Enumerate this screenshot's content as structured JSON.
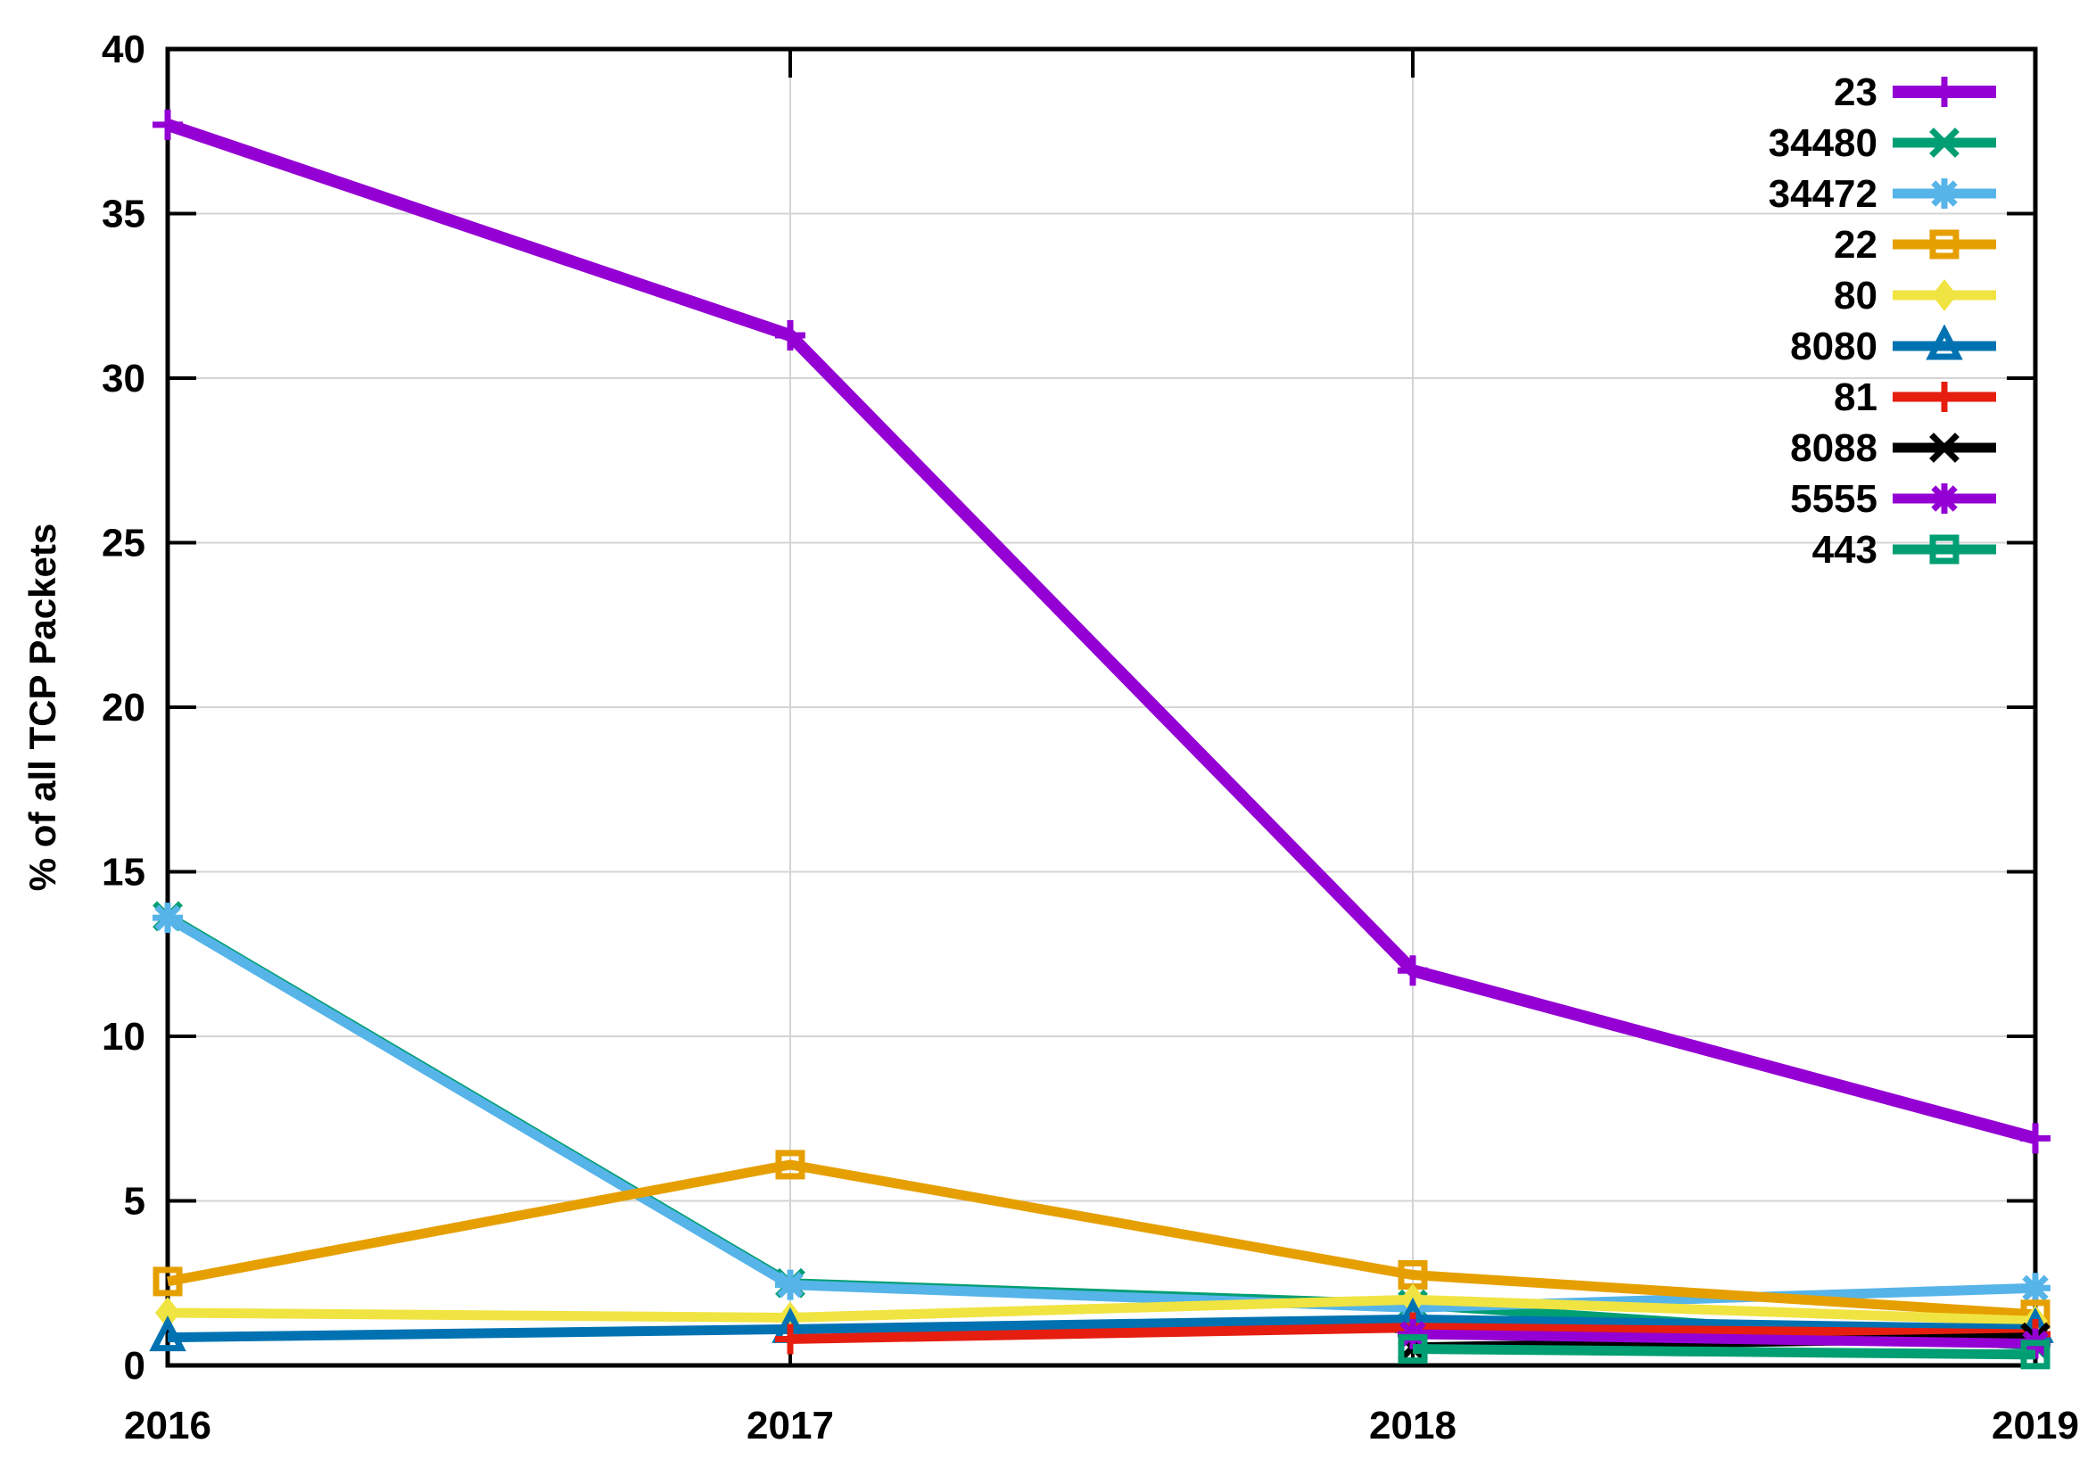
{
  "chart_data": {
    "type": "line",
    "title": "",
    "xlabel": "",
    "ylabel": "% of all TCP Packets",
    "x": [
      2016,
      2017,
      2018,
      2019
    ],
    "x_tick_labels": [
      "2016",
      "2017",
      "2018",
      "2019"
    ],
    "ylim": [
      0,
      40
    ],
    "ytick_step": 5,
    "ytick_labels": [
      "0",
      "5",
      "10",
      "15",
      "20",
      "25",
      "30",
      "35",
      "40"
    ],
    "grid": true,
    "legend_position": "top-right-inside",
    "grid_color": "#d4d4d4",
    "axis_color": "#000000",
    "background_color": "#ffffff",
    "series": [
      {
        "name": "23",
        "color": "#9400d3",
        "marker": "plus",
        "line_width": 14,
        "values": [
          37.7,
          31.3,
          12.0,
          6.9
        ]
      },
      {
        "name": "34480",
        "color": "#009e73",
        "marker": "cross",
        "line_width": 11,
        "values": [
          13.65,
          2.5,
          1.85,
          0.6
        ]
      },
      {
        "name": "34472",
        "color": "#56b4e9",
        "marker": "asterisk",
        "line_width": 11,
        "values": [
          13.6,
          2.45,
          1.75,
          2.35
        ]
      },
      {
        "name": "22",
        "color": "#e69f00",
        "marker": "square-open",
        "line_width": 11,
        "values": [
          2.55,
          6.1,
          2.75,
          1.55
        ]
      },
      {
        "name": "80",
        "color": "#f0e442",
        "marker": "diamond-filled",
        "line_width": 11,
        "values": [
          1.6,
          1.45,
          2.0,
          1.35
        ]
      },
      {
        "name": "8080",
        "color": "#0072b2",
        "marker": "triangle-open",
        "line_width": 11,
        "values": [
          0.85,
          1.1,
          1.4,
          1.1
        ]
      },
      {
        "name": "81",
        "color": "#e51e10",
        "marker": "plus",
        "line_width": 11,
        "values": [
          null,
          0.8,
          1.15,
          0.95
        ]
      },
      {
        "name": "8088",
        "color": "#000000",
        "marker": "cross",
        "line_width": 11,
        "values": [
          null,
          null,
          0.55,
          0.85
        ]
      },
      {
        "name": "5555",
        "color": "#9400d3",
        "marker": "asterisk",
        "line_width": 11,
        "values": [
          null,
          null,
          0.95,
          0.66
        ]
      },
      {
        "name": "443",
        "color": "#009e73",
        "marker": "square-open",
        "line_width": 11,
        "values": [
          null,
          null,
          0.5,
          0.33
        ]
      }
    ]
  }
}
